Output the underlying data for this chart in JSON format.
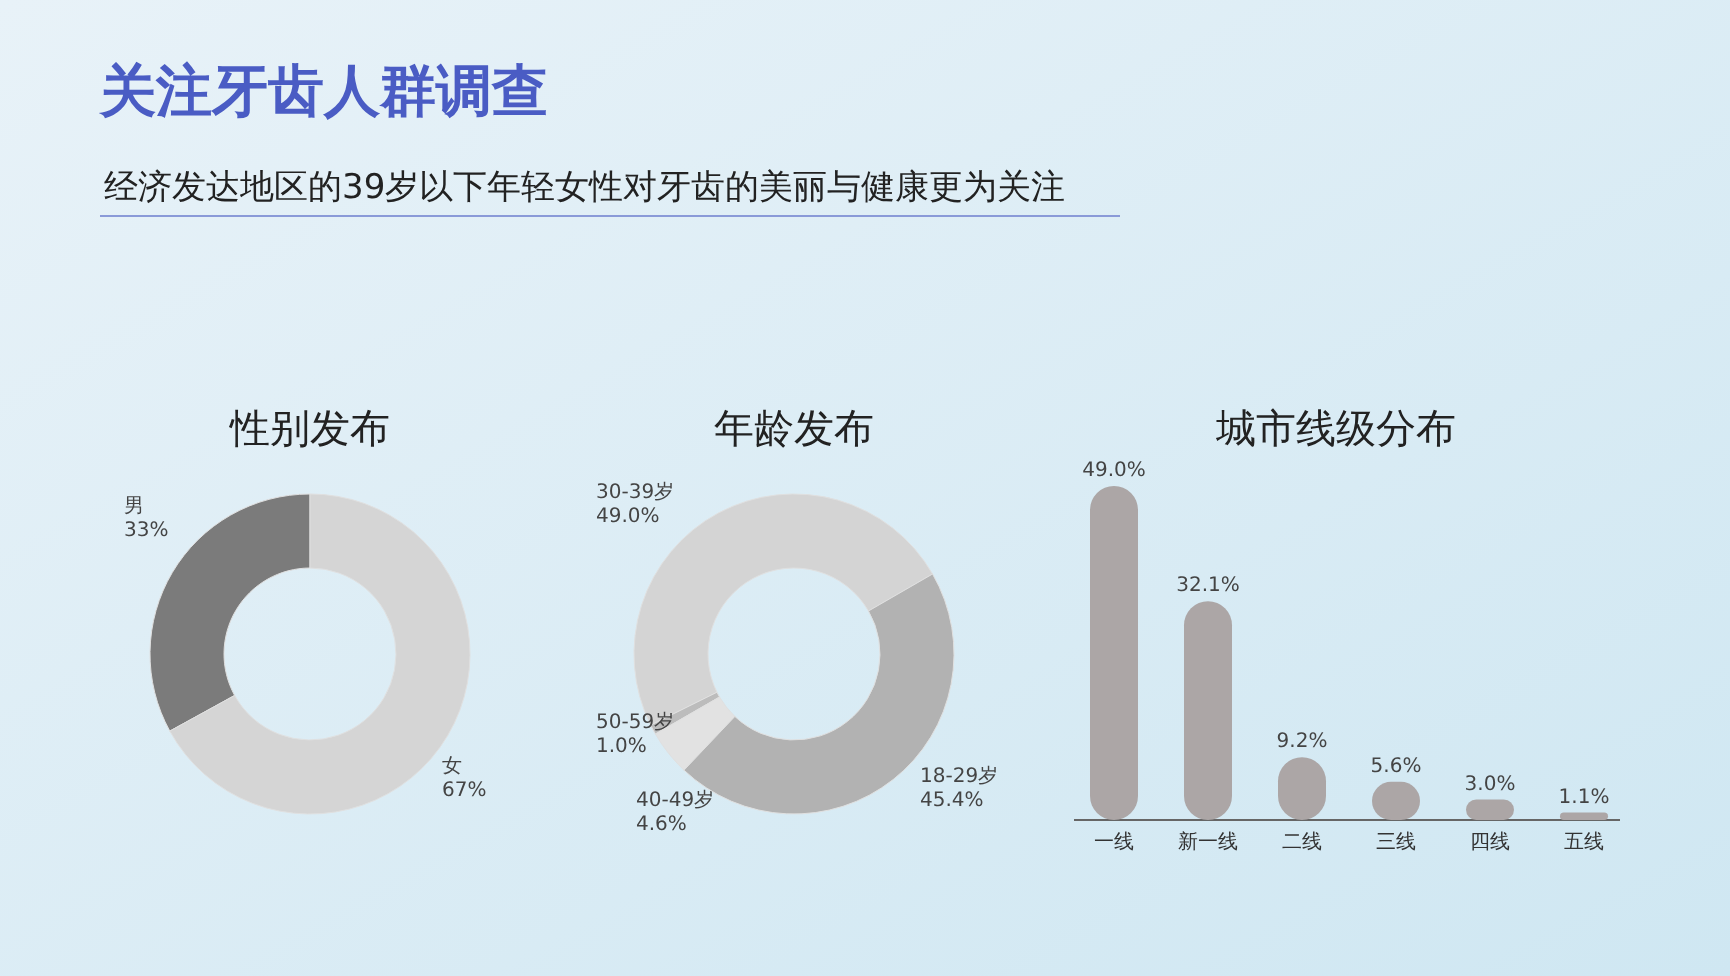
{
  "chart_data": [
    {
      "type": "other",
      "title": "关注牙齿人群调查",
      "subtitle": "经济发达地区的39岁以下年轻女性对牙齿的美丽与健康更为关注"
    },
    {
      "type": "donut",
      "title": "性别发布",
      "categories": [
        "男",
        "女"
      ],
      "values": [
        33,
        67
      ],
      "value_labels": [
        "33%",
        "67%"
      ],
      "colors": [
        "#7b7b7b",
        "#d5d5d5"
      ]
    },
    {
      "type": "donut",
      "title": "年龄发布",
      "categories": [
        "30-39岁",
        "50-59岁",
        "40-49岁",
        "18-29岁"
      ],
      "values": [
        49.0,
        1.0,
        4.6,
        45.4
      ],
      "value_labels": [
        "49.0%",
        "1.0%",
        "4.6%",
        "45.4%"
      ],
      "colors": [
        "#d4d4d4",
        "#bcbcbc",
        "#e2e2e2",
        "#b2b2b2"
      ]
    },
    {
      "type": "bar",
      "title": "城市线级分布",
      "categories": [
        "一线",
        "新一线",
        "二线",
        "三线",
        "四线",
        "五线"
      ],
      "values": [
        49.0,
        32.1,
        9.2,
        5.6,
        3.0,
        1.1
      ],
      "value_labels": [
        "49.0%",
        "32.1%",
        "9.2%",
        "5.6%",
        "3.0%",
        "1.1%"
      ],
      "color": "#aca6a6"
    }
  ]
}
